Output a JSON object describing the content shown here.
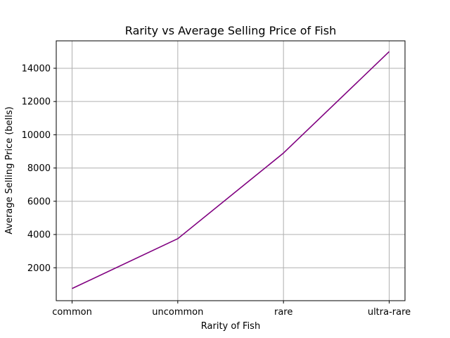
{
  "chart_data": {
    "type": "line",
    "title": "Rarity vs Average Selling Price of Fish",
    "xlabel": "Rarity of Fish",
    "ylabel": "Average Selling Price (bells)",
    "categories": [
      "common",
      "uncommon",
      "rare",
      "ultra-rare"
    ],
    "series": [
      {
        "values": [
          750,
          3750,
          8900,
          15000
        ],
        "color": "#800080"
      }
    ],
    "yticks": [
      2000,
      4000,
      6000,
      8000,
      10000,
      12000,
      14000
    ],
    "ylim": [
      20,
      15650
    ],
    "grid": true,
    "gridColor": "#b0b0b0"
  }
}
